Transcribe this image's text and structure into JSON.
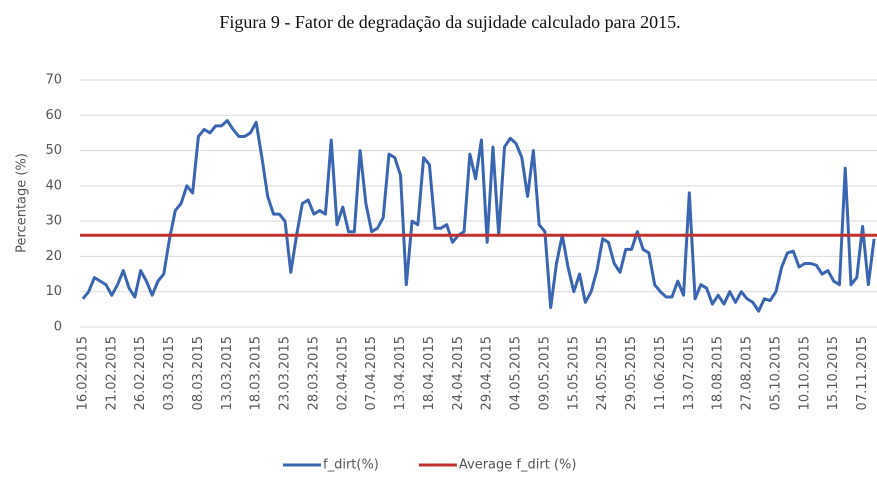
{
  "chart_data": {
    "type": "line",
    "title": "Figura 9 - Fator de degradação da sujidade calculado para 2015.",
    "y_label": "Percentage (%)",
    "categories": [
      "16.02.2015",
      null,
      null,
      null,
      null,
      "21.02.2015",
      null,
      null,
      null,
      null,
      "26.02.2015",
      null,
      null,
      null,
      null,
      "03.03.2015",
      null,
      null,
      null,
      null,
      "08.03.2015",
      null,
      null,
      null,
      null,
      "13.03.2015",
      null,
      null,
      null,
      null,
      "18.03.2015",
      null,
      null,
      null,
      null,
      "23.03.2015",
      null,
      null,
      null,
      null,
      "28.03.2015",
      null,
      null,
      null,
      null,
      "02.04.2015",
      null,
      null,
      null,
      null,
      "07.04.2015",
      null,
      null,
      null,
      null,
      "13.04.2015",
      null,
      null,
      null,
      null,
      "18.04.2015",
      null,
      null,
      null,
      null,
      "24.04.2015",
      null,
      null,
      null,
      null,
      "29.04.2015",
      null,
      null,
      null,
      null,
      "04.05.2015",
      null,
      null,
      null,
      null,
      "09.05.2015",
      null,
      null,
      null,
      null,
      "15.05.2015",
      null,
      null,
      null,
      null,
      "24.05.2015",
      null,
      null,
      null,
      null,
      "29.05.2015",
      null,
      null,
      null,
      null,
      "11.06.2015",
      null,
      null,
      null,
      null,
      "13.07.2015",
      null,
      null,
      null,
      null,
      "18.08.2015",
      null,
      null,
      null,
      null,
      "27.08.2015",
      null,
      null,
      null,
      null,
      "05.10.2015",
      null,
      null,
      null,
      null,
      "10.10.2015",
      null,
      null,
      null,
      null,
      "15.10.2015",
      null,
      null,
      null,
      null,
      "07.11.2015",
      null,
      null
    ],
    "series": [
      {
        "name": "f_dirt(%)",
        "color": "#3a65b0",
        "values": [
          8,
          10,
          14,
          13,
          12,
          9,
          12,
          16,
          11,
          8.5,
          16,
          13,
          9,
          13,
          15,
          25,
          33,
          35,
          40,
          38,
          54,
          56,
          55,
          57,
          57,
          58.5,
          56,
          54,
          54,
          55,
          58,
          48,
          37,
          32,
          32,
          30,
          15.5,
          26,
          35,
          36,
          32,
          33,
          32,
          53,
          29,
          34,
          27,
          27,
          50,
          35,
          27,
          28,
          31,
          49,
          48,
          43,
          12,
          30,
          29,
          48,
          46,
          28,
          28,
          29,
          24,
          26,
          27,
          49,
          42,
          53,
          24,
          51,
          26,
          51,
          53.5,
          52,
          48,
          37,
          50,
          29,
          27,
          5.5,
          18,
          26,
          17,
          10,
          15,
          7,
          10,
          16,
          25,
          24,
          18,
          15.5,
          22,
          22,
          27,
          22,
          21,
          12,
          10,
          8.5,
          8.5,
          13,
          9,
          38,
          8,
          12,
          11,
          6.5,
          9,
          6.5,
          10,
          7,
          10,
          8,
          7,
          4.5,
          8,
          7.5,
          10,
          17,
          21,
          21.5,
          17,
          18,
          18,
          17.5,
          15,
          16,
          13,
          12,
          45,
          12,
          14,
          28.5,
          12,
          25
        ]
      },
      {
        "name": "Average f_dirt (%)",
        "color": "#c0302e",
        "value": 26
      }
    ],
    "ylim": [
      0,
      70
    ],
    "yticks": [
      0,
      10,
      20,
      30,
      40,
      50,
      60,
      70
    ],
    "grid": true
  }
}
